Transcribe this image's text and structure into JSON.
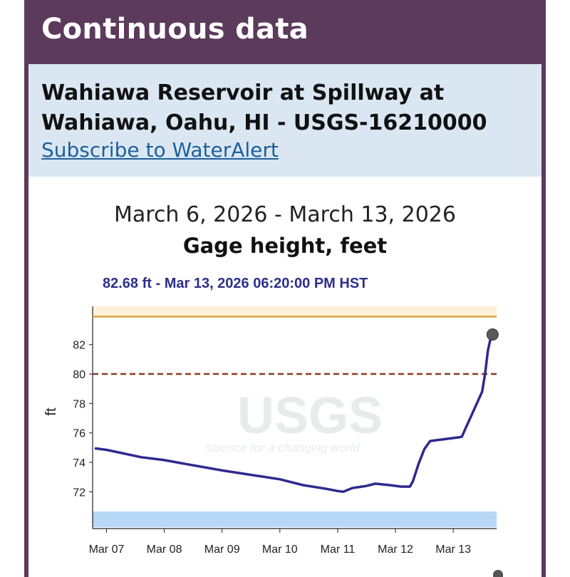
{
  "header": {
    "title": "Continuous data"
  },
  "site": {
    "title": "Wahiawa Reservoir at Spillway at Wahiawa, Oahu, HI - USGS-16210000",
    "subscribe_link": "Subscribe to WaterAlert"
  },
  "graph": {
    "date_range": "March 6, 2026 - March 13, 2026",
    "parameter": "Gage height, feet",
    "latest_reading": "82.68 ft - Mar 13, 2026 06:20:00 PM HST",
    "watermark_text": "USGS",
    "watermark_tagline": "science for a changing world"
  },
  "chart_data": {
    "type": "line",
    "title": "Gage height, feet",
    "subtitle": "March 6, 2026 - March 13, 2026",
    "xlabel": "",
    "ylabel": "ft",
    "x_tick_labels": [
      "Mar 07",
      "Mar 08",
      "Mar 09",
      "Mar 10",
      "Mar 11",
      "Mar 12",
      "Mar 13"
    ],
    "y_tick_labels": [
      "72",
      "74",
      "76",
      "78",
      "80",
      "82"
    ],
    "x_range_days": [
      -0.24,
      6.75
    ],
    "ylim": [
      69.5,
      84.6
    ],
    "x_unit": "days since Mar 07, 2026 00:00 HST",
    "series": [
      {
        "color": "#2e2a8f",
        "points": [
          [
            -0.2,
            74.95
          ],
          [
            0.0,
            74.85
          ],
          [
            0.3,
            74.6
          ],
          [
            0.6,
            74.35
          ],
          [
            1.0,
            74.15
          ],
          [
            1.5,
            73.8
          ],
          [
            2.0,
            73.45
          ],
          [
            2.5,
            73.15
          ],
          [
            3.0,
            72.85
          ],
          [
            3.4,
            72.45
          ],
          [
            3.8,
            72.2
          ],
          [
            4.0,
            72.05
          ],
          [
            4.1,
            72.0
          ],
          [
            4.25,
            72.25
          ],
          [
            4.5,
            72.4
          ],
          [
            4.65,
            72.55
          ],
          [
            4.9,
            72.45
          ],
          [
            5.1,
            72.35
          ],
          [
            5.25,
            72.35
          ],
          [
            5.3,
            72.7
          ],
          [
            5.4,
            73.9
          ],
          [
            5.5,
            74.9
          ],
          [
            5.6,
            75.45
          ],
          [
            5.8,
            75.55
          ],
          [
            6.0,
            75.65
          ],
          [
            6.1,
            75.7
          ],
          [
            6.15,
            75.75
          ],
          [
            6.2,
            76.2
          ],
          [
            6.35,
            77.5
          ],
          [
            6.5,
            78.8
          ],
          [
            6.55,
            80.0
          ],
          [
            6.6,
            81.6
          ],
          [
            6.65,
            82.5
          ],
          [
            6.68,
            82.68
          ]
        ]
      }
    ],
    "reference_lines": [
      {
        "value": 83.9,
        "color": "#d9a63c",
        "style": "solid"
      },
      {
        "value": 80.0,
        "color": "#8a3a1f",
        "style": "dashed"
      }
    ],
    "latest_point": {
      "x": 6.68,
      "y": 82.68,
      "color": "#5a5a5a"
    },
    "band_color": "#fdf1d9",
    "bottom_strip_color": "#b7d8f7",
    "watermark_color": "#e6ecec"
  }
}
